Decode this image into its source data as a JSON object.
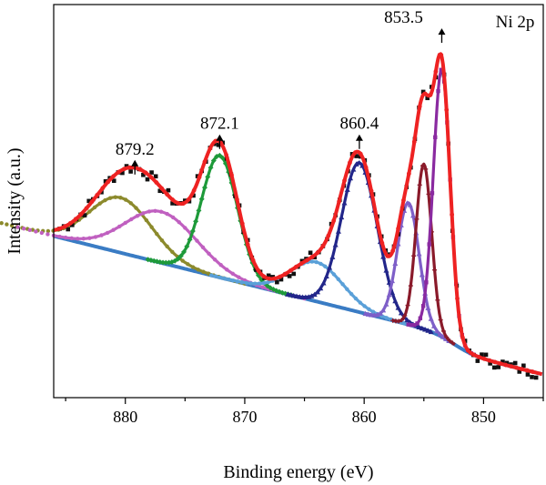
{
  "chart_data": {
    "type": "line",
    "title": "",
    "panel_label": "Ni 2p",
    "xlabel": "Binding energy (eV)",
    "ylabel": "Intensity (a.u.)",
    "xlim": [
      886,
      845
    ],
    "ylim": [
      0,
      1
    ],
    "x_reversed": true,
    "y_ticks_shown": false,
    "grid": false,
    "legend": "none",
    "x_ticks": [
      880,
      870,
      860,
      850
    ],
    "x_tick_labels": [
      "880",
      "870",
      "860",
      "850"
    ],
    "peak_annotations": [
      {
        "label": "879.2",
        "x": 879.2,
        "y": 0.6
      },
      {
        "label": "872.1",
        "x": 872.1,
        "y": 0.665
      },
      {
        "label": "860.4",
        "x": 860.4,
        "y": 0.665
      },
      {
        "label": "853.5",
        "x": 853.5,
        "y": 0.935
      }
    ],
    "baseline": {
      "name": "baseline",
      "color": "#3a7cc4",
      "x0": 886,
      "y0": 0.39,
      "x1": 845,
      "y1": 0.08,
      "step_center": 852.5
    },
    "components": [
      {
        "name": "component-880.4",
        "color": "#8c8a2c",
        "center": 880.4,
        "height": 0.14,
        "width": 2.6,
        "marker": "circle"
      },
      {
        "name": "component-877",
        "color": "#c060c0",
        "center": 877.0,
        "height": 0.13,
        "width": 3.0,
        "marker": "circle"
      },
      {
        "name": "component-872.1",
        "color": "#1e9a3a",
        "center": 872.1,
        "height": 0.31,
        "width": 1.5,
        "marker": "diamond"
      },
      {
        "name": "component-864",
        "color": "#5aa0d8",
        "center": 864.0,
        "height": 0.1,
        "width": 2.2,
        "marker": "circle"
      },
      {
        "name": "component-860.4",
        "color": "#22268a",
        "center": 860.4,
        "height": 0.38,
        "width": 1.5,
        "marker": "triangle"
      },
      {
        "name": "component-856.3",
        "color": "#7e5fc8",
        "center": 856.3,
        "height": 0.31,
        "width": 0.9,
        "marker": "triangle"
      },
      {
        "name": "component-855",
        "color": "#8a1a2a",
        "center": 855.0,
        "height": 0.42,
        "width": 0.65,
        "marker": "cross"
      },
      {
        "name": "component-853.5",
        "color": "#8a2aa0",
        "center": 853.5,
        "height": 0.68,
        "width": 0.7,
        "marker": "square"
      }
    ],
    "envelope": {
      "name": "fitted envelope",
      "color": "#ee2222"
    },
    "raw": {
      "name": "raw data",
      "color": "#111111"
    }
  }
}
